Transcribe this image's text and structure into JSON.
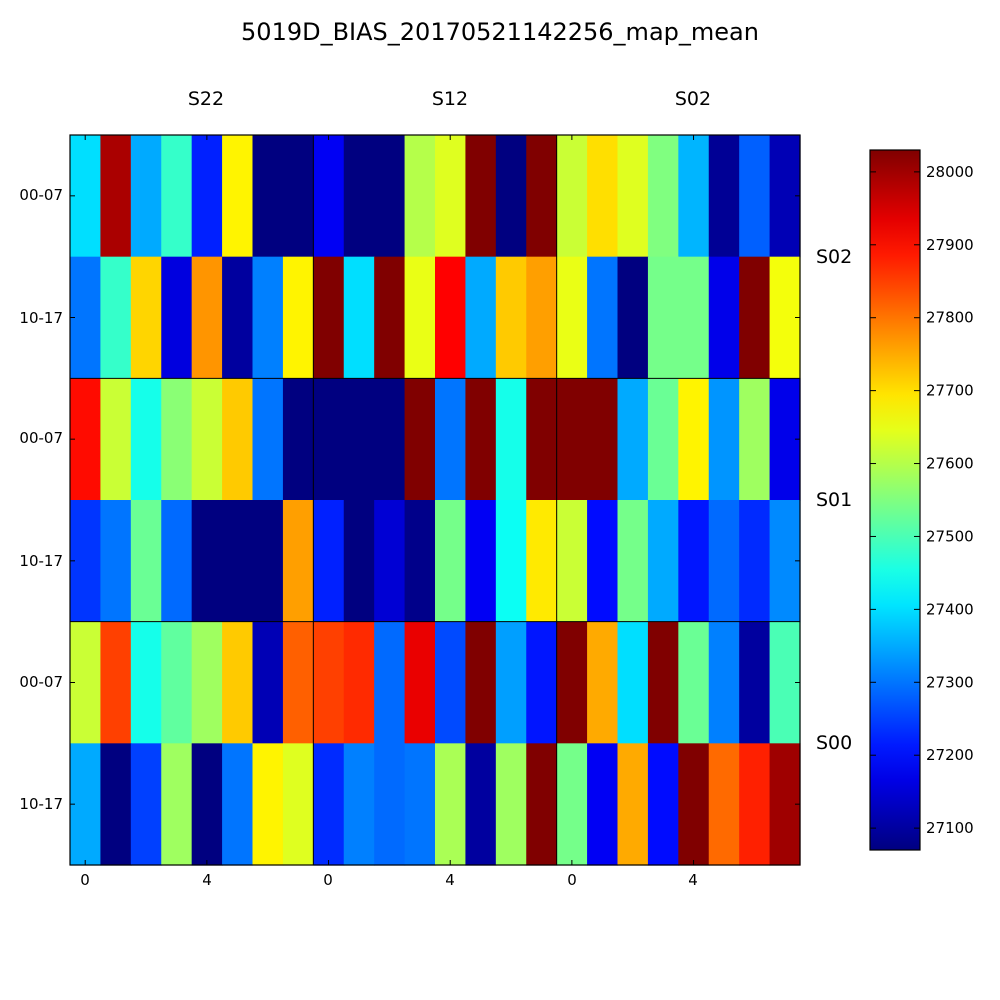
{
  "chart_data": {
    "type": "heatmap",
    "title": "5019D_BIAS_20170521142256_map_mean",
    "column_groups": [
      "S22",
      "S12",
      "S02"
    ],
    "row_groups": [
      "S02",
      "S01",
      "S00"
    ],
    "y_tick_labels": [
      "00-07",
      "10-17"
    ],
    "x_tick_labels": [
      "0",
      "4"
    ],
    "colorbar": {
      "ticks": [
        27100,
        27200,
        27300,
        27400,
        27500,
        27600,
        27700,
        27800,
        27900,
        28000
      ],
      "vmin": 27070,
      "vmax": 28030,
      "colormap": "jet"
    },
    "values": [
      [
        27400,
        27990,
        27350,
        27480,
        27220,
        27680,
        27060,
        27060,
        27180,
        27060,
        27060,
        27600,
        27640,
        28030,
        27070,
        28030,
        27620,
        27700,
        27640,
        27550,
        27360,
        27090,
        27280,
        27120
      ],
      [
        27300,
        27480,
        27710,
        27160,
        27770,
        27100,
        27310,
        27680,
        28030,
        27400,
        28030,
        27650,
        27910,
        27350,
        27720,
        27760,
        27650,
        27300,
        27070,
        27540,
        27540,
        27170,
        28030,
        27660
      ],
      [
        27900,
        27620,
        27450,
        27560,
        27620,
        27720,
        27300,
        27060,
        27060,
        27060,
        27060,
        28030,
        27300,
        28030,
        27450,
        28030,
        28030,
        28030,
        27350,
        27530,
        27680,
        27330,
        27580,
        27170
      ],
      [
        27240,
        27300,
        27530,
        27290,
        27060,
        27060,
        27060,
        27760,
        27220,
        27070,
        27150,
        27080,
        27540,
        27180,
        27440,
        27690,
        27620,
        27200,
        27540,
        27350,
        27210,
        27290,
        27230,
        27320
      ],
      [
        27620,
        27850,
        27450,
        27520,
        27580,
        27720,
        27120,
        27820,
        27850,
        27870,
        27290,
        27930,
        27260,
        28030,
        27340,
        27210,
        28030,
        27750,
        27400,
        28030,
        27530,
        27310,
        27100,
        27500
      ],
      [
        27350,
        27060,
        27250,
        27580,
        27060,
        27300,
        27680,
        27640,
        27230,
        27310,
        27290,
        27300,
        27590,
        27100,
        27580,
        28030,
        27540,
        27180,
        27750,
        27200,
        28030,
        27810,
        27880,
        28000
      ]
    ]
  }
}
